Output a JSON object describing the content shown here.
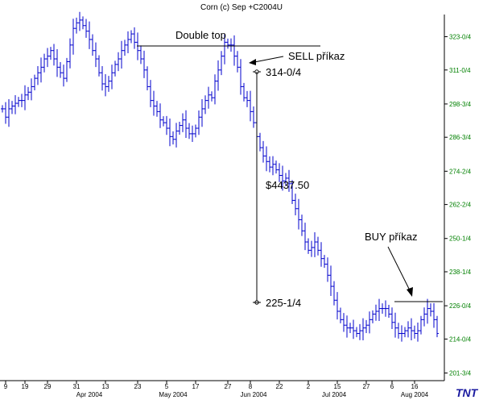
{
  "chart_data": {
    "type": "ohlc",
    "title": "Corn (c) Sep +C2004U",
    "y_unit": "cents per bushel (eighths notation)",
    "y_range": [
      199,
      331
    ],
    "y_ticks": [
      {
        "label": "323-0/4",
        "value": 323.0
      },
      {
        "label": "311-0/4",
        "value": 311.0
      },
      {
        "label": "298-3/4",
        "value": 298.75
      },
      {
        "label": "286-3/4",
        "value": 286.75
      },
      {
        "label": "274-2/4",
        "value": 274.5
      },
      {
        "label": "262-2/4",
        "value": 262.5
      },
      {
        "label": "250-1/4",
        "value": 250.25
      },
      {
        "label": "238-1/4",
        "value": 238.25
      },
      {
        "label": "226-0/4",
        "value": 226.0
      },
      {
        "label": "214-0/4",
        "value": 214.0
      },
      {
        "label": "201-3/4",
        "value": 201.75
      }
    ],
    "x_day_ticks": [
      {
        "label": "9",
        "index": 1
      },
      {
        "label": "19",
        "index": 7
      },
      {
        "label": "29",
        "index": 14
      },
      {
        "label": "31",
        "index": 23
      },
      {
        "label": "13",
        "index": 32
      },
      {
        "label": "23",
        "index": 42
      },
      {
        "label": "5",
        "index": 51
      },
      {
        "label": "17",
        "index": 60
      },
      {
        "label": "27",
        "index": 70
      },
      {
        "label": "8",
        "index": 77
      },
      {
        "label": "22",
        "index": 86
      },
      {
        "label": "2",
        "index": 95
      },
      {
        "label": "15",
        "index": 104
      },
      {
        "label": "27",
        "index": 113
      },
      {
        "label": "6",
        "index": 121
      },
      {
        "label": "16",
        "index": 128
      }
    ],
    "x_month_ticks": [
      {
        "label": "Apr 2004",
        "index": 27
      },
      {
        "label": "May 2004",
        "index": 53
      },
      {
        "label": "Jun 2004",
        "index": 78
      },
      {
        "label": "Jul 2004",
        "index": 103
      },
      {
        "label": "Aug 2004",
        "index": 128
      }
    ],
    "bar_count": 136,
    "closes": [
      297,
      294,
      297,
      298,
      299,
      300,
      300,
      302,
      303,
      305,
      308,
      310,
      312,
      315,
      316,
      318,
      315,
      312,
      310,
      308,
      314,
      320,
      326,
      328,
      329,
      327,
      325,
      322,
      318,
      315,
      310,
      306,
      305,
      307,
      310,
      313,
      315,
      318,
      320,
      322,
      324,
      321,
      318,
      315,
      311,
      305,
      300,
      298,
      296,
      293,
      292,
      290,
      287,
      286,
      289,
      291,
      293,
      290,
      288,
      288,
      290,
      294,
      297,
      300,
      302,
      301,
      307,
      311,
      316,
      321,
      320,
      320,
      316,
      312,
      305,
      301,
      300,
      296,
      292,
      287,
      283,
      280,
      278,
      276,
      277,
      275,
      273,
      271,
      272,
      270,
      264,
      261,
      257,
      253,
      249,
      246,
      247,
      249,
      246,
      243,
      241,
      237,
      233,
      228,
      224,
      221,
      219,
      218,
      218,
      217,
      216,
      217,
      218,
      219,
      221,
      223,
      224,
      225,
      225,
      225,
      223,
      220,
      218,
      216,
      216,
      217,
      218,
      217,
      216,
      217,
      221,
      223,
      225,
      224,
      221,
      216
    ],
    "annotations": {
      "pattern_label": "Double top",
      "sell_label": "SELL příkaz",
      "buy_label": "BUY příkaz",
      "high_price": "314-0/4",
      "low_price": "225-1/4",
      "profit": "$4437.50"
    },
    "grid": false,
    "logo_text": "TNT"
  },
  "colors": {
    "bars": "#0000cc",
    "y_tick_text": "#008000",
    "annotation_lines": "#000000"
  }
}
